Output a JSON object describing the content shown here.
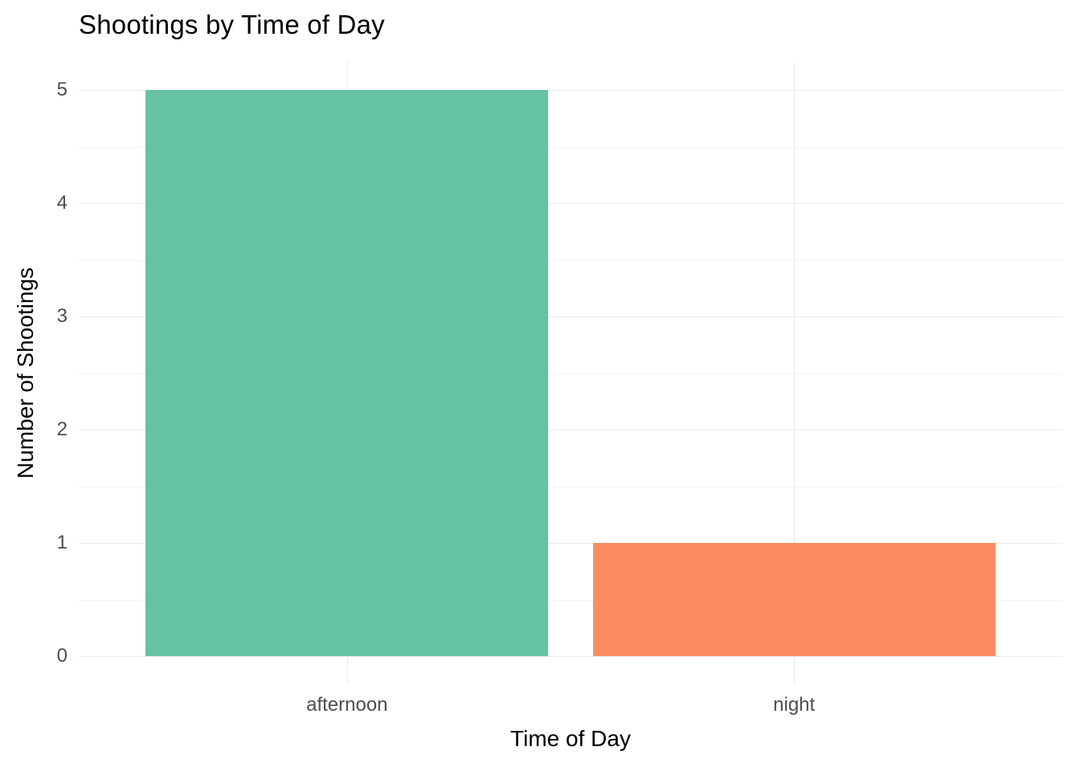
{
  "chart_data": {
    "type": "bar",
    "title": "Shootings by Time of Day",
    "xlabel": "Time of Day",
    "ylabel": "Number of Shootings",
    "categories": [
      "afternoon",
      "night"
    ],
    "values": [
      5,
      1
    ],
    "colors": [
      "#66C2A5",
      "#FC8D62"
    ],
    "ylim": [
      0,
      5
    ],
    "yticks": [
      0,
      1,
      2,
      3,
      4,
      5
    ],
    "y_minor_ticks": [
      0.5,
      1.5,
      2.5,
      3.5,
      4.5
    ],
    "grid": true,
    "grid_color": "#EBEBEB",
    "background": "#FFFFFF",
    "tick_label_color": "#4D4D4D",
    "legend": false,
    "bar_width_fraction": 0.9
  }
}
